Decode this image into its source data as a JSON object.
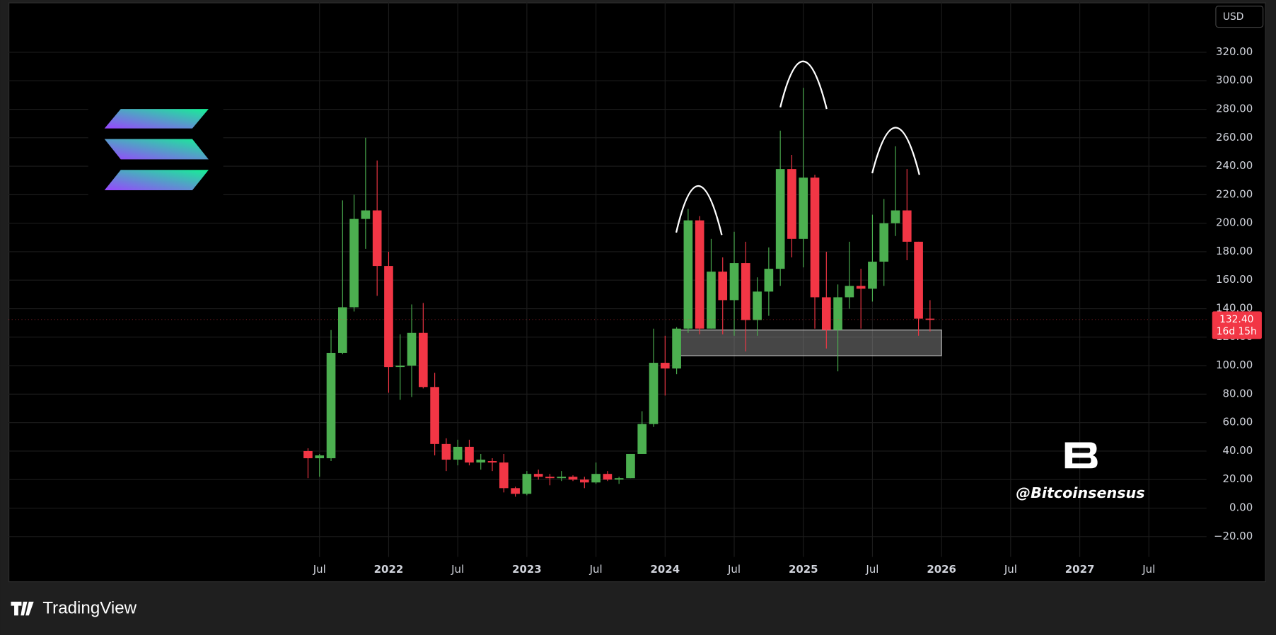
{
  "chart_data": {
    "type": "candlestick",
    "currency": "USD",
    "watermark": "@Bitcoinsensus",
    "brand": "TradingView",
    "price_label": "132.40",
    "countdown": "16d 15h",
    "up_color": "#4caf50",
    "down_color": "#f23645",
    "grid": true,
    "x": [
      "2021-06",
      "2021-07",
      "2021-08",
      "2021-09",
      "2021-10",
      "2021-11",
      "2021-12",
      "2022-01",
      "2022-02",
      "2022-03",
      "2022-04",
      "2022-05",
      "2022-06",
      "2022-07",
      "2022-08",
      "2022-09",
      "2022-10",
      "2022-11",
      "2022-12",
      "2023-01",
      "2023-02",
      "2023-03",
      "2023-04",
      "2023-05",
      "2023-06",
      "2023-07",
      "2023-08",
      "2023-09",
      "2023-10",
      "2023-11",
      "2023-12",
      "2024-01",
      "2024-02",
      "2024-03",
      "2024-04",
      "2024-05",
      "2024-06",
      "2024-07",
      "2024-08",
      "2024-09",
      "2024-10",
      "2024-11",
      "2024-12",
      "2025-01",
      "2025-02",
      "2025-03",
      "2025-04",
      "2025-05",
      "2025-06",
      "2025-07",
      "2025-08",
      "2025-09",
      "2025-10",
      "2025-11",
      "2025-12"
    ],
    "open": [
      40,
      35,
      35,
      109,
      141,
      203,
      209,
      170,
      99,
      100,
      123,
      85,
      45,
      34,
      43,
      32,
      33,
      32,
      14,
      10,
      24,
      22,
      21,
      22,
      20,
      18,
      24,
      20,
      21,
      38,
      59,
      102,
      98,
      126,
      202,
      126,
      166,
      146,
      172,
      132,
      152,
      168,
      238,
      189,
      232,
      148,
      125,
      148,
      156,
      154,
      173,
      200,
      209,
      187,
      133
    ],
    "high": [
      42,
      38,
      125,
      216,
      220,
      260,
      244,
      180,
      122,
      143,
      144,
      95,
      49,
      48,
      48,
      38,
      35,
      38,
      15,
      26,
      27,
      24,
      26,
      23,
      22,
      32,
      26,
      22,
      38,
      68,
      126,
      121,
      127,
      210,
      205,
      189,
      176,
      194,
      187,
      162,
      183,
      265,
      248,
      295,
      234,
      180,
      157,
      187,
      168,
      206,
      217,
      254,
      238,
      187,
      146
    ],
    "low": [
      21,
      22,
      33,
      108,
      138,
      182,
      149,
      81,
      76,
      78,
      84,
      37,
      26,
      30,
      30,
      27,
      26,
      11,
      8,
      9,
      20,
      16,
      19,
      19,
      14,
      17,
      19,
      17,
      21,
      38,
      57,
      79,
      94,
      123,
      122,
      126,
      122,
      121,
      110,
      121,
      135,
      156,
      176,
      169,
      126,
      112,
      96,
      140,
      126,
      145,
      156,
      191,
      174,
      121,
      124
    ],
    "close": [
      35,
      37,
      109,
      141,
      203,
      209,
      170,
      99,
      100,
      123,
      85,
      45,
      34,
      43,
      32,
      34,
      32,
      14,
      10,
      24,
      22,
      21,
      22,
      20,
      18,
      24,
      20,
      21,
      38,
      59,
      102,
      98,
      126,
      202,
      126,
      166,
      146,
      172,
      132,
      152,
      168,
      238,
      189,
      232,
      148,
      125,
      148,
      156,
      154,
      173,
      200,
      209,
      187,
      133,
      132.4
    ],
    "zone": {
      "x": [
        "2024-02",
        "2026-01"
      ],
      "y": [
        107,
        125
      ]
    },
    "xlim": [
      "2019-04",
      "2027-12"
    ],
    "xticks": [
      {
        "value": "2021-07",
        "label": "Jul"
      },
      {
        "value": "2022-01",
        "label": "2022"
      },
      {
        "value": "2022-07",
        "label": "Jul"
      },
      {
        "value": "2023-01",
        "label": "2023"
      },
      {
        "value": "2023-07",
        "label": "Jul"
      },
      {
        "value": "2024-01",
        "label": "2024"
      },
      {
        "value": "2024-07",
        "label": "Jul"
      },
      {
        "value": "2025-01",
        "label": "2025"
      },
      {
        "value": "2025-07",
        "label": "Jul"
      },
      {
        "value": "2026-01",
        "label": "2026"
      },
      {
        "value": "2026-07",
        "label": "Jul"
      },
      {
        "value": "2027-01",
        "label": "2027"
      },
      {
        "value": "2027-07",
        "label": "Jul"
      }
    ],
    "ylim": [
      -52,
      355
    ],
    "yticks": [
      {
        "value": -20,
        "label": "−20.00"
      },
      {
        "value": 0,
        "label": "0.00"
      },
      {
        "value": 20,
        "label": "20.00"
      },
      {
        "value": 40,
        "label": "40.00"
      },
      {
        "value": 60,
        "label": "60.00"
      },
      {
        "value": 80,
        "label": "80.00"
      },
      {
        "value": 100,
        "label": "100.00"
      },
      {
        "value": 120,
        "label": "120.00"
      },
      {
        "value": 140,
        "label": "140.00"
      },
      {
        "value": 160,
        "label": "160.00"
      },
      {
        "value": 180,
        "label": "180.00"
      },
      {
        "value": 200,
        "label": "200.00"
      },
      {
        "value": 220,
        "label": "220.00"
      },
      {
        "value": 240,
        "label": "240.00"
      },
      {
        "value": 260,
        "label": "260.00"
      },
      {
        "value": 280,
        "label": "280.00"
      },
      {
        "value": 300,
        "label": "300.00"
      },
      {
        "value": 320,
        "label": "320.00"
      }
    ]
  }
}
